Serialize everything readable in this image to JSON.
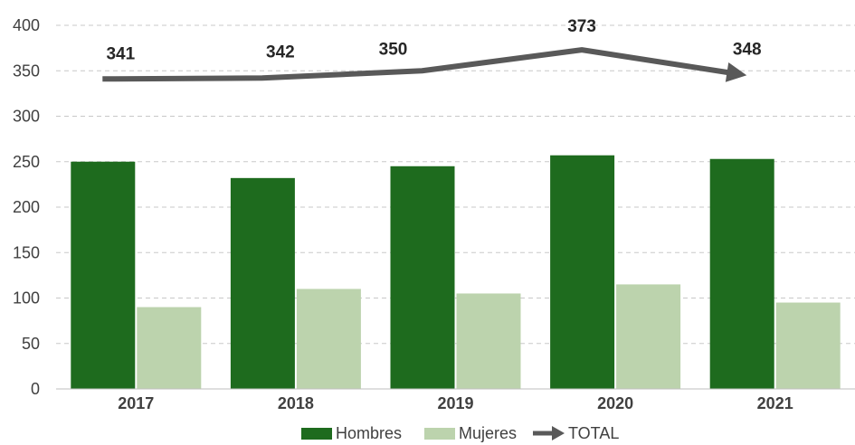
{
  "chart_data": {
    "type": "bar",
    "categories": [
      "2017",
      "2018",
      "2019",
      "2020",
      "2021"
    ],
    "series": [
      {
        "name": "Hombres",
        "type": "bar",
        "color": "#1e6b1e",
        "values": [
          250,
          232,
          245,
          257,
          253
        ]
      },
      {
        "name": "Mujeres",
        "type": "bar",
        "color": "#bcd3ad",
        "values": [
          90,
          110,
          105,
          115,
          95
        ]
      },
      {
        "name": "TOTAL",
        "type": "line",
        "color": "#595959",
        "values": [
          341,
          342,
          350,
          373,
          348
        ],
        "labels": [
          "341",
          "342",
          "350",
          "373",
          "348"
        ]
      }
    ],
    "ylim": [
      0,
      400
    ],
    "yticks": [
      "0",
      "50",
      "100",
      "150",
      "200",
      "250",
      "300",
      "350",
      "400"
    ],
    "grid": true,
    "legend": "bottom",
    "title": "",
    "xlabel": "",
    "ylabel": ""
  }
}
